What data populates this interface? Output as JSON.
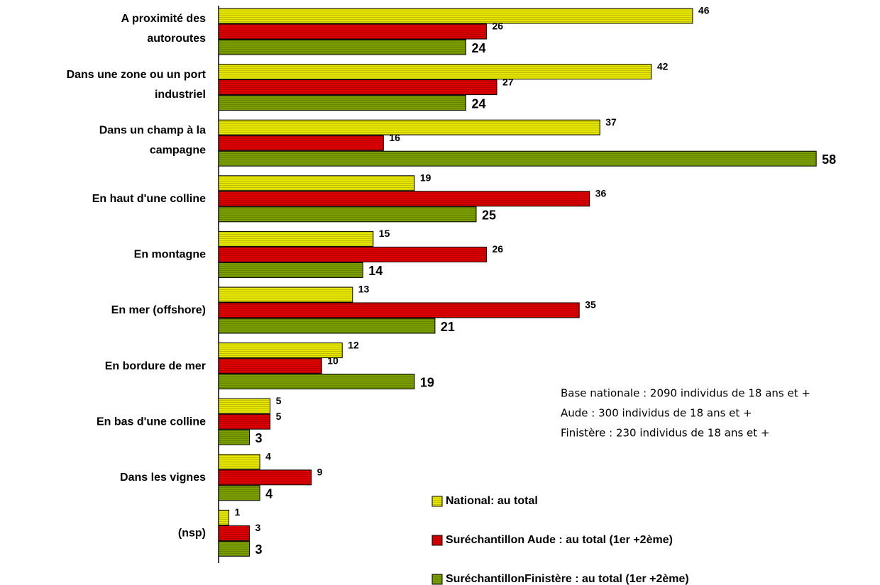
{
  "chart_data": {
    "type": "bar",
    "orientation": "horizontal",
    "categories": [
      [
        "A proximité des",
        "autoroutes"
      ],
      [
        "Dans une zone ou un port",
        "industriel"
      ],
      [
        "Dans un champ à la",
        "campagne"
      ],
      [
        "En haut d'une colline"
      ],
      [
        "En montagne"
      ],
      [
        "En mer (offshore)"
      ],
      [
        "En bordure de mer"
      ],
      [
        "En bas d'une colline"
      ],
      [
        "Dans les vignes"
      ],
      [
        "(nsp)"
      ]
    ],
    "series": [
      {
        "name": "National: au total",
        "color": "#e6e600",
        "values": [
          46,
          42,
          37,
          19,
          15,
          13,
          12,
          5,
          4,
          1
        ]
      },
      {
        "name": "Suréchantillon Aude : au total (1er +2ème)",
        "color": "#dd0000",
        "values": [
          26,
          27,
          16,
          36,
          26,
          35,
          10,
          5,
          9,
          3
        ]
      },
      {
        "name": "SuréchantillonFinistère : au total (1er +2ème)",
        "color": "#7a9e00",
        "values": [
          24,
          24,
          58,
          25,
          14,
          21,
          19,
          3,
          4,
          3
        ]
      }
    ],
    "notes": [
      "Base nationale : 2090 individus de 18 ans et +",
      "Aude : 300 individus de 18 ans et +",
      "Finistère : 230  individus de 18 ans et +"
    ]
  }
}
